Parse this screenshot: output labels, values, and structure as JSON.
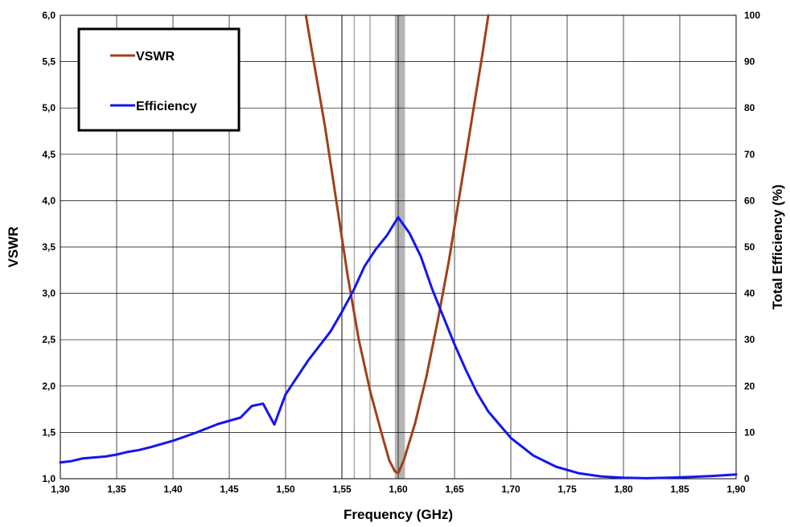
{
  "chart_data": {
    "type": "line",
    "title": "",
    "xlabel": "Frequency (GHz)",
    "ylabel": "VSWR",
    "y2label": "Total Efficiency (%)",
    "xlim": [
      1.3,
      1.9
    ],
    "ylim": [
      1.0,
      6.0
    ],
    "y2lim": [
      0,
      100
    ],
    "x_ticks": [
      "1,30",
      "1,35",
      "1,40",
      "1,45",
      "1,50",
      "1,55",
      "1,60",
      "1,65",
      "1,70",
      "1,75",
      "1,80",
      "1,85",
      "1,90"
    ],
    "y_ticks": [
      "1,0",
      "1,5",
      "2,0",
      "2,5",
      "3,0",
      "3,5",
      "4,0",
      "4,5",
      "5,0",
      "5,5",
      "6,0"
    ],
    "y2_ticks": [
      "0",
      "10",
      "20",
      "30",
      "40",
      "50",
      "60",
      "70",
      "80",
      "90",
      "100"
    ],
    "grid": true,
    "legend_position": "top-left",
    "band_markers": [
      1.55,
      1.561,
      1.575
    ],
    "shaded_band": [
      1.597,
      1.606
    ],
    "series": [
      {
        "name": "VSWR",
        "axis": "left",
        "color": "#A0401A",
        "x": [
          1.518,
          1.525,
          1.535,
          1.545,
          1.555,
          1.565,
          1.575,
          1.585,
          1.592,
          1.597,
          1.6,
          1.605,
          1.615,
          1.625,
          1.635,
          1.645,
          1.655,
          1.665,
          1.675,
          1.68
        ],
        "y": [
          6.0,
          5.5,
          4.8,
          4.0,
          3.2,
          2.5,
          1.95,
          1.5,
          1.2,
          1.08,
          1.06,
          1.2,
          1.6,
          2.1,
          2.7,
          3.35,
          4.1,
          4.85,
          5.6,
          6.0
        ]
      },
      {
        "name": "Efficiency",
        "axis": "right",
        "color": "#1515F0",
        "x": [
          1.3,
          1.31,
          1.32,
          1.34,
          1.35,
          1.36,
          1.37,
          1.38,
          1.4,
          1.42,
          1.44,
          1.46,
          1.47,
          1.48,
          1.49,
          1.5,
          1.52,
          1.54,
          1.55,
          1.56,
          1.57,
          1.58,
          1.59,
          1.595,
          1.6,
          1.61,
          1.62,
          1.63,
          1.64,
          1.65,
          1.66,
          1.67,
          1.68,
          1.7,
          1.72,
          1.74,
          1.76,
          1.78,
          1.8,
          1.82,
          1.84,
          1.86,
          1.88,
          1.9
        ],
        "y": [
          3.5,
          3.8,
          4.4,
          4.8,
          5.2,
          5.8,
          6.2,
          6.8,
          8.2,
          9.9,
          11.8,
          13.2,
          15.7,
          16.2,
          11.7,
          18.2,
          25.5,
          31.8,
          36.0,
          40.5,
          45.8,
          49.5,
          52.5,
          54.5,
          56.4,
          53.0,
          48.0,
          41.0,
          35.0,
          29.0,
          23.5,
          18.5,
          14.5,
          8.8,
          5.0,
          2.6,
          1.2,
          0.5,
          0.2,
          0.1,
          0.2,
          0.4,
          0.6,
          0.9
        ]
      }
    ]
  }
}
